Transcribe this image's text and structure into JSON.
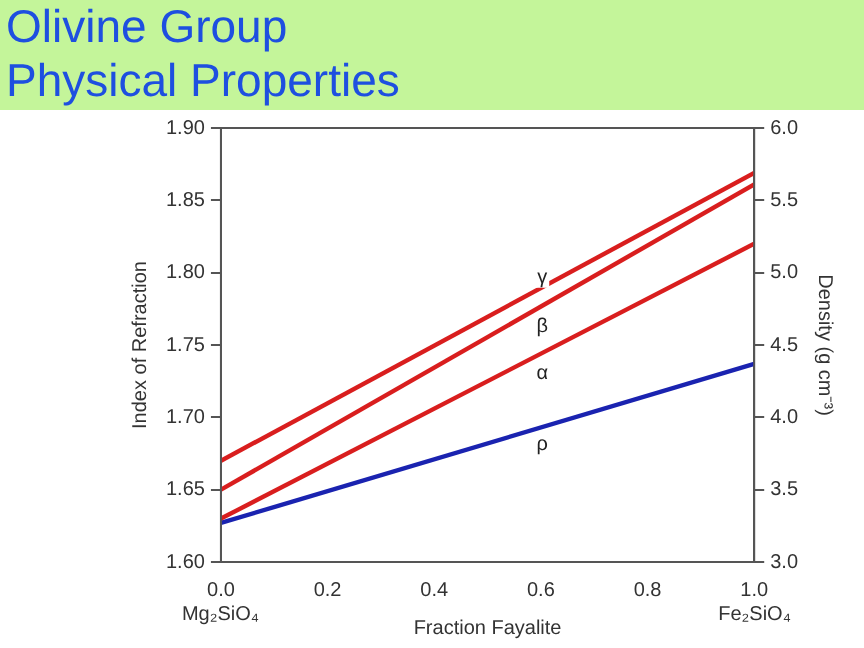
{
  "chart_data": {
    "type": "line",
    "title": "Olivine Group Physical Properties",
    "xlabel": "Fraction Fayalite",
    "ylabel": "Index of Refraction",
    "y2label": "Density (g cm⁻³)",
    "x": [
      0,
      1
    ],
    "series": [
      {
        "name": "γ",
        "color": "#d91e1e",
        "values": [
          1.67,
          1.869
        ]
      },
      {
        "name": "β",
        "color": "#d91e1e",
        "values": [
          1.65,
          1.861
        ]
      },
      {
        "name": "α",
        "color": "#d91e1e",
        "values": [
          1.63,
          1.82
        ]
      },
      {
        "name": "ρ",
        "color": "#1a23b0",
        "axis": "y2",
        "values": [
          3.27,
          4.37
        ]
      }
    ],
    "xlim": [
      0,
      1
    ],
    "xticks": [
      {
        "value": 0,
        "label": "0.0"
      },
      0.2,
      0.4,
      0.6,
      0.8,
      {
        "value": 1,
        "label": "1.0"
      }
    ],
    "ylim": [
      1.6,
      1.9
    ],
    "yticks": [
      {
        "value": 1.6,
        "label": "1.60"
      },
      {
        "value": 1.65,
        "label": "1.65"
      },
      {
        "value": 1.7,
        "label": "1.70"
      },
      {
        "value": 1.75,
        "label": "1.75"
      },
      {
        "value": 1.8,
        "label": "1.80"
      },
      {
        "value": 1.85,
        "label": "1.85"
      },
      {
        "value": 1.9,
        "label": "1.90"
      }
    ],
    "y2lim": [
      3,
      6
    ],
    "y2ticks": [
      {
        "value": 3,
        "label": "3.0"
      },
      {
        "value": 3.5,
        "label": "3.5"
      },
      {
        "value": 4,
        "label": "4.0"
      },
      {
        "value": 4.5,
        "label": "4.5"
      },
      {
        "value": 5,
        "label": "5.0"
      },
      {
        "value": 5.5,
        "label": "5.5"
      },
      {
        "value": 6,
        "label": "6.0"
      }
    ],
    "annotations": [
      "Mg₂SiO₄",
      "Fe₂SiO₄"
    ],
    "grid": false,
    "legend": false,
    "marker": "none",
    "line_style": "solid"
  }
}
